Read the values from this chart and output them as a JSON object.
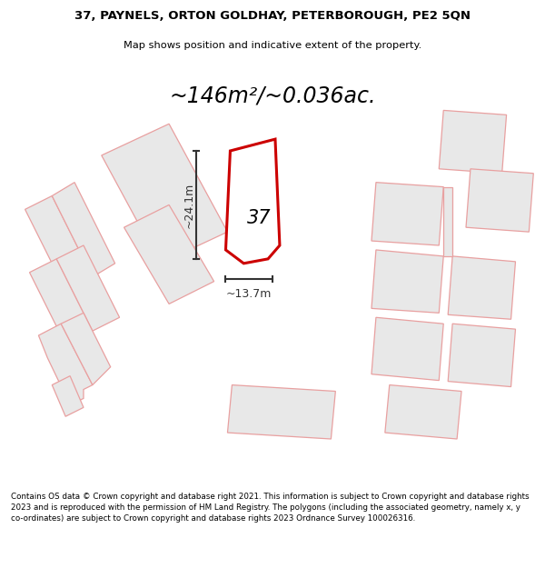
{
  "title_line1": "37, PAYNELS, ORTON GOLDHAY, PETERBOROUGH, PE2 5QN",
  "title_line2": "Map shows position and indicative extent of the property.",
  "area_text": "~146m²/~0.036ac.",
  "label_37": "37",
  "dim_vertical": "~24.1m",
  "dim_horizontal": "~13.7m",
  "footer_text": "Contains OS data © Crown copyright and database right 2021. This information is subject to Crown copyright and database rights 2023 and is reproduced with the permission of HM Land Registry. The polygons (including the associated geometry, namely x, y co-ordinates) are subject to Crown copyright and database rights 2023 Ordnance Survey 100026316.",
  "bg_color": "#ffffff",
  "building_fill": "#e8e8e8",
  "building_edge": "#e8a0a0",
  "highlight_fill": "#ffffff",
  "highlight_edge": "#cc0000",
  "dim_color": "#333333",
  "text_color": "#000000",
  "road_fill": "#ffffff",
  "street_band_fill": "#eeeeee"
}
